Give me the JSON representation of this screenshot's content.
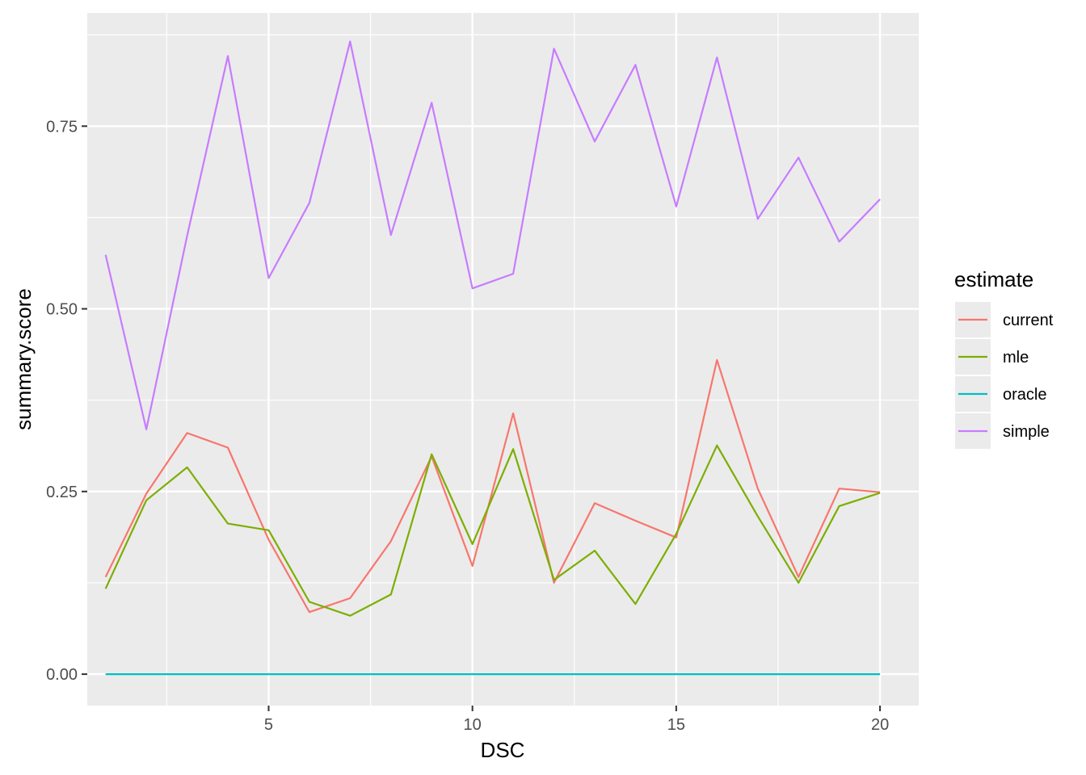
{
  "chart_data": {
    "type": "line",
    "xlabel": "DSC",
    "ylabel": "summary.score",
    "xlim": [
      0.55,
      20.95
    ],
    "ylim": [
      -0.043,
      0.905
    ],
    "xticks": [
      5,
      10,
      15,
      20
    ],
    "xtick_labels": [
      "5",
      "10",
      "15",
      "20"
    ],
    "yticks": [
      0,
      0.25,
      0.5,
      0.75
    ],
    "ytick_labels": [
      "0.00",
      "0.25",
      "0.50",
      "0.75"
    ],
    "grid": true,
    "legend": {
      "title": "estimate",
      "position": "right"
    },
    "x": [
      1,
      2,
      3,
      4,
      5,
      6,
      7,
      8,
      9,
      10,
      11,
      12,
      13,
      14,
      15,
      16,
      17,
      18,
      19,
      20
    ],
    "series": [
      {
        "name": "current",
        "color": "#F8766D",
        "values": [
          0.133,
          0.247,
          0.33,
          0.31,
          0.184,
          0.085,
          0.104,
          0.182,
          0.298,
          0.148,
          0.357,
          0.125,
          0.234,
          0.21,
          0.187,
          0.43,
          0.254,
          0.133,
          0.254,
          0.249
        ]
      },
      {
        "name": "mle",
        "color": "#7CAE00",
        "values": [
          0.117,
          0.238,
          0.283,
          0.206,
          0.197,
          0.099,
          0.08,
          0.109,
          0.301,
          0.178,
          0.308,
          0.129,
          0.169,
          0.096,
          0.192,
          0.313,
          0.216,
          0.125,
          0.23,
          0.248
        ]
      },
      {
        "name": "oracle",
        "color": "#00BFC4",
        "values": [
          0,
          0,
          0,
          0,
          0,
          0,
          0,
          0,
          0,
          0,
          0,
          0,
          0,
          0,
          0,
          0,
          0,
          0,
          0,
          0
        ]
      },
      {
        "name": "simple",
        "color": "#C77CFF",
        "values": [
          0.574,
          0.335,
          0.6,
          0.846,
          0.542,
          0.645,
          0.866,
          0.601,
          0.782,
          0.528,
          0.548,
          0.856,
          0.729,
          0.834,
          0.64,
          0.844,
          0.623,
          0.707,
          0.592,
          0.65
        ]
      }
    ]
  }
}
